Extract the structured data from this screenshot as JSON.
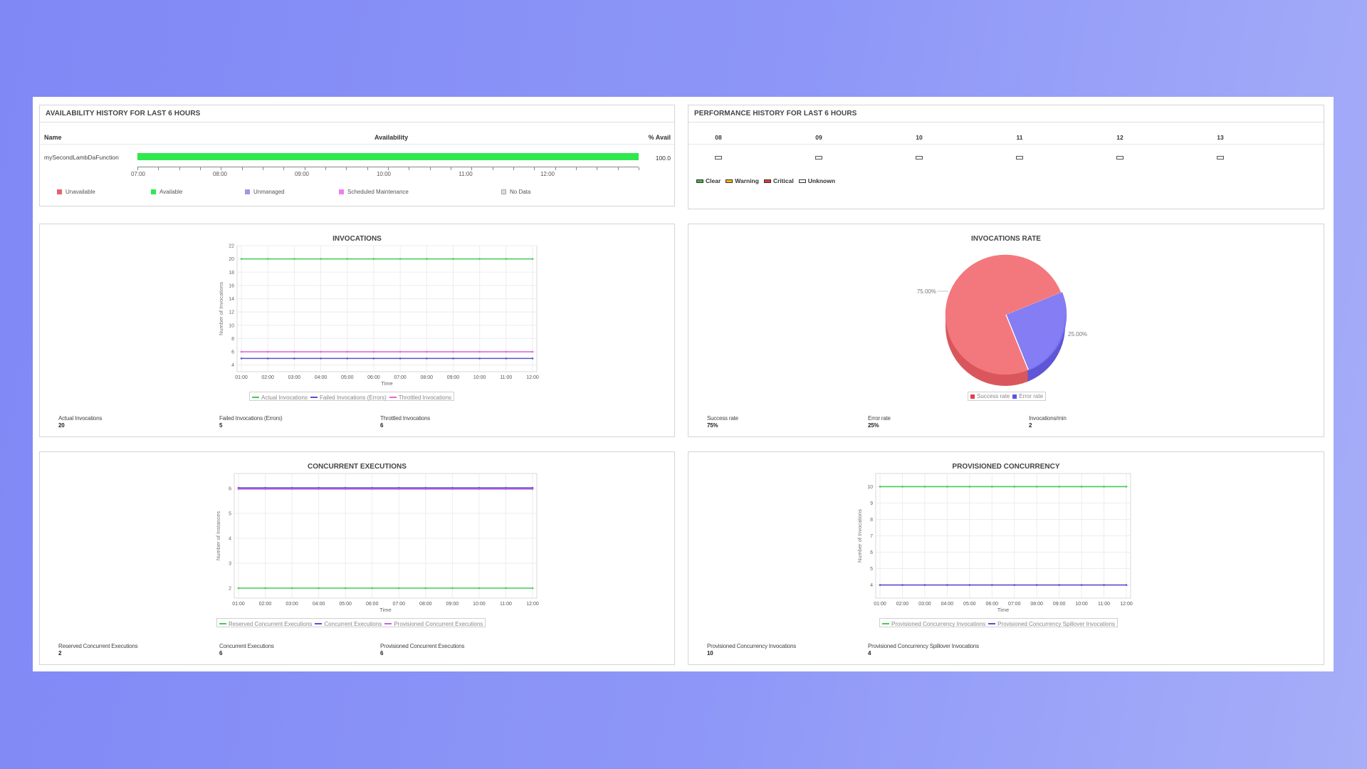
{
  "availability": {
    "title": "AVAILABILITY HISTORY FOR LAST 6 HOURS",
    "headers": {
      "name": "Name",
      "availability": "Availability",
      "avail": "% Avail"
    },
    "row": {
      "name": "mySecondLambDaFunction",
      "avail": "100.0",
      "available_fraction": 1.0
    },
    "ticks": [
      "07:00",
      "08:00",
      "09:00",
      "10:00",
      "11:00",
      "12:00"
    ],
    "legend": [
      {
        "label": "Unavailable",
        "color": "#e8616b"
      },
      {
        "label": "Available",
        "color": "#2ee84f"
      },
      {
        "label": "Unmanaged",
        "color": "#9a9be0"
      },
      {
        "label": "Scheduled Maintenance",
        "color": "#ef7ff0"
      },
      {
        "label": "No Data",
        "color": "#dddddd"
      }
    ]
  },
  "performance": {
    "title": "PERFORMANCE HISTORY FOR LAST 6 HOURS",
    "hours": [
      "08",
      "09",
      "10",
      "11",
      "12",
      "13"
    ],
    "legend": [
      {
        "label": "Clear",
        "color": "#4caf50"
      },
      {
        "label": "Warning",
        "color": "#f5b800"
      },
      {
        "label": "Critical",
        "color": "#e53935"
      },
      {
        "label": "Unknown",
        "color": "#ffffff"
      }
    ]
  },
  "invocations": {
    "title": "INVOCATIONS",
    "stats": [
      {
        "label": "Actual Invocations",
        "value": "20"
      },
      {
        "label": "Failed Invocations (Errors)",
        "value": "5"
      },
      {
        "label": "Throttled Invocations",
        "value": "6"
      }
    ]
  },
  "rate": {
    "title": "INVOCATIONS RATE",
    "stats": [
      {
        "label": "Success rate",
        "value": "75%"
      },
      {
        "label": "Error rate",
        "value": "25%"
      },
      {
        "label": "Invocations/min",
        "value": "2"
      }
    ]
  },
  "concurrent": {
    "title": "CONCURRENT EXECUTIONS",
    "stats": [
      {
        "label": "Reserved Concurrent Executions",
        "value": "2"
      },
      {
        "label": "Concurrent Executions",
        "value": "6"
      },
      {
        "label": "Provisioned Concurrent Executions",
        "value": "6"
      }
    ]
  },
  "provisioned": {
    "title": "PROVISIONED CONCURRENCY",
    "stats": [
      {
        "label": "Provisioned Concurrency Invocations",
        "value": "10"
      },
      {
        "label": "Provisioned Concurrency Spillover Invocations",
        "value": "4"
      }
    ]
  },
  "chart_data": [
    {
      "type": "line",
      "title": "INVOCATIONS",
      "xlabel": "Time",
      "ylabel": "Number of Invocations",
      "x": [
        "01:00",
        "02:00",
        "03:00",
        "04:00",
        "05:00",
        "06:00",
        "07:00",
        "08:00",
        "09:00",
        "10:00",
        "11:00",
        "12:00"
      ],
      "ylim": [
        3,
        22
      ],
      "yticks": [
        4,
        6,
        8,
        10,
        12,
        14,
        16,
        18,
        20,
        22
      ],
      "series": [
        {
          "name": "Actual Invocations",
          "color": "#44cc55",
          "values": [
            20,
            20,
            20,
            20,
            20,
            20,
            20,
            20,
            20,
            20,
            20,
            20
          ]
        },
        {
          "name": "Failed Invocations (Errors)",
          "color": "#5a4fcf",
          "values": [
            5,
            5,
            5,
            5,
            5,
            5,
            5,
            5,
            5,
            5,
            5,
            5
          ]
        },
        {
          "name": "Throttled Invocations",
          "color": "#e066e0",
          "values": [
            6,
            6,
            6,
            6,
            6,
            6,
            6,
            6,
            6,
            6,
            6,
            6
          ]
        }
      ],
      "grid": true,
      "legend": "bottom"
    },
    {
      "type": "pie",
      "title": "INVOCATIONS RATE",
      "labels": [
        "Success rate",
        "Error rate"
      ],
      "values": [
        75,
        25
      ],
      "data_labels": [
        "75.00%",
        "25.00%"
      ],
      "colors": [
        "#f26d72",
        "#7a72f2"
      ],
      "legend": "bottom"
    },
    {
      "type": "line",
      "title": "CONCURRENT EXECUTIONS",
      "xlabel": "Time",
      "ylabel": "Number of Instances",
      "x": [
        "01:00",
        "02:00",
        "03:00",
        "04:00",
        "05:00",
        "06:00",
        "07:00",
        "08:00",
        "09:00",
        "10:00",
        "11:00",
        "12:00"
      ],
      "ylim": [
        1.6,
        6.6
      ],
      "yticks": [
        2,
        3,
        4,
        5,
        6
      ],
      "series": [
        {
          "name": "Reserved Concurrent Executions",
          "color": "#44cc55",
          "values": [
            2,
            2,
            2,
            2,
            2,
            2,
            2,
            2,
            2,
            2,
            2,
            2
          ]
        },
        {
          "name": "Concurrent Executions",
          "color": "#5a4fcf",
          "values": [
            6,
            6,
            6,
            6,
            6,
            6,
            6,
            6,
            6,
            6,
            6,
            6
          ]
        },
        {
          "name": "Provisioned Concurrent Executions",
          "color": "#c266e0",
          "values": [
            6,
            6,
            6,
            6,
            6,
            6,
            6,
            6,
            6,
            6,
            6,
            6
          ]
        }
      ],
      "grid": true,
      "legend": "bottom"
    },
    {
      "type": "line",
      "title": "PROVISIONED CONCURRENCY",
      "xlabel": "Time",
      "ylabel": "Number of Invocations",
      "x": [
        "01:00",
        "02:00",
        "03:00",
        "04:00",
        "05:00",
        "06:00",
        "07:00",
        "08:00",
        "09:00",
        "10:00",
        "11:00",
        "12:00"
      ],
      "ylim": [
        3.2,
        10.8
      ],
      "yticks": [
        4,
        5,
        6,
        7,
        8,
        9,
        10
      ],
      "series": [
        {
          "name": "Provisioned Concurrency Invocations",
          "color": "#44cc55",
          "values": [
            10,
            10,
            10,
            10,
            10,
            10,
            10,
            10,
            10,
            10,
            10,
            10
          ]
        },
        {
          "name": "Provisioned Concurrency Spillover Invocations",
          "color": "#5a4fcf",
          "values": [
            4,
            4,
            4,
            4,
            4,
            4,
            4,
            4,
            4,
            4,
            4,
            4
          ]
        }
      ],
      "grid": true,
      "legend": "bottom"
    }
  ]
}
